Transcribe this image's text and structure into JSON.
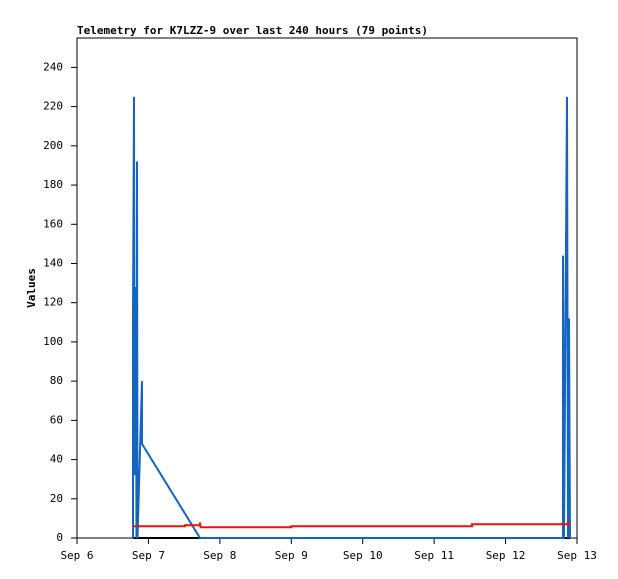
{
  "chart_data": {
    "type": "line",
    "title": "Telemetry for K7LZZ-9 over last 240 hours (79 points)",
    "ylabel": "Values",
    "xlim": [
      6,
      13
    ],
    "ylim": [
      0,
      255
    ],
    "xticks": [
      {
        "value": 6,
        "label": "Sep 6"
      },
      {
        "value": 7,
        "label": "Sep 7"
      },
      {
        "value": 8,
        "label": "Sep 8"
      },
      {
        "value": 9,
        "label": "Sep 9"
      },
      {
        "value": 10,
        "label": "Sep 10"
      },
      {
        "value": 11,
        "label": "Sep 11"
      },
      {
        "value": 12,
        "label": "Sep 12"
      },
      {
        "value": 13,
        "label": "Sep 13"
      }
    ],
    "yticks": [
      0,
      20,
      40,
      60,
      80,
      100,
      120,
      140,
      160,
      180,
      200,
      220,
      240
    ],
    "series": [
      {
        "color": "#000000",
        "x": [
          6.784,
          12.902
        ],
        "values": [
          0,
          0
        ]
      },
      {
        "color": "#1565c0",
        "x": [
          6.784,
          6.784,
          6.798,
          6.805,
          6.812,
          6.819,
          6.826,
          6.833,
          6.84,
          6.847,
          6.91,
          6.91,
          7.722,
          12.804,
          12.804,
          12.818,
          12.86,
          12.874,
          12.888,
          12.902
        ],
        "values": [
          0,
          112,
          225,
          32,
          128,
          40,
          96,
          0,
          192,
          0,
          80,
          48,
          0,
          0,
          144,
          0,
          225,
          0,
          112,
          0
        ]
      },
      {
        "color": "#e8140c",
        "x": [
          6.784,
          7.512,
          7.512,
          7.722,
          7.722,
          7.73,
          9.0,
          9.0,
          11.53,
          11.53,
          12.86,
          12.874,
          12.88
        ],
        "values": [
          6,
          6,
          6.5,
          6.5,
          8,
          5.5,
          5.5,
          6,
          6,
          7,
          7,
          8,
          6
        ]
      }
    ]
  }
}
